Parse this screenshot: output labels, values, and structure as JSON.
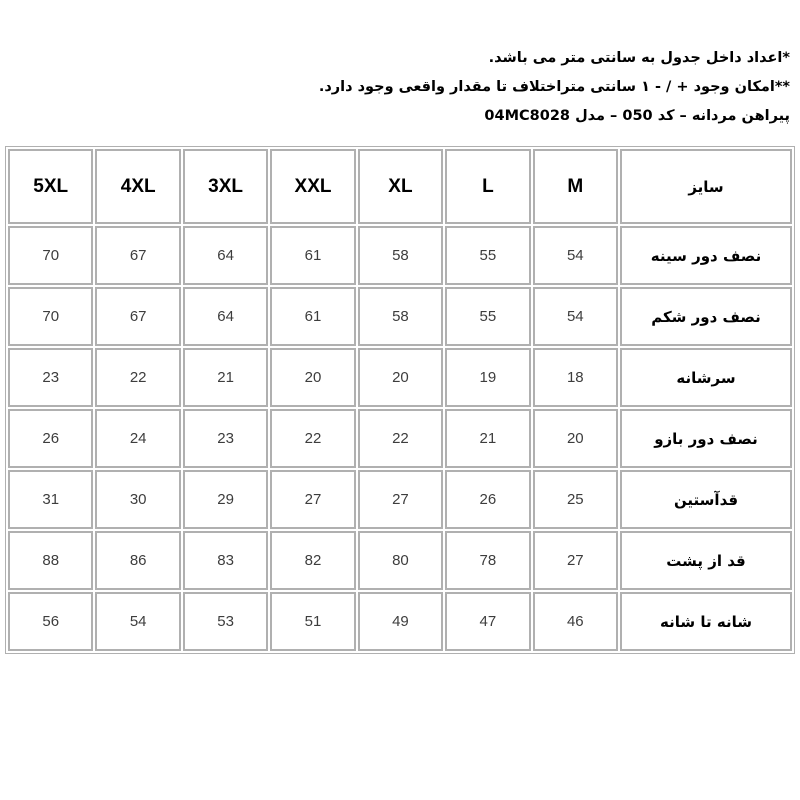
{
  "notes": {
    "units_note": "*اعداد داخل جدول به سانتی متر می باشد.",
    "tolerance_note": "**امکان وجود + / - ۱ سانتی متراختلاف تا مقدار واقعی وجود دارد.",
    "product_title": "پیراهن مردانه – کد 050 – مدل 04MC8028"
  },
  "table": {
    "header": [
      "سایز",
      "M",
      "L",
      "XL",
      "XXL",
      "3XL",
      "4XL",
      "5XL"
    ],
    "rows": [
      {
        "label": "نصف دور سینه",
        "values": [
          "54",
          "55",
          "58",
          "61",
          "64",
          "67",
          "70"
        ]
      },
      {
        "label": "نصف دور شکم",
        "values": [
          "54",
          "55",
          "58",
          "61",
          "64",
          "67",
          "70"
        ]
      },
      {
        "label": "سرشانه",
        "values": [
          "18",
          "19",
          "20",
          "20",
          "21",
          "22",
          "23"
        ]
      },
      {
        "label": "نصف دور بازو",
        "values": [
          "20",
          "21",
          "22",
          "22",
          "23",
          "24",
          "26"
        ]
      },
      {
        "label": "قدآستین",
        "values": [
          "25",
          "26",
          "27",
          "27",
          "29",
          "30",
          "31"
        ]
      },
      {
        "label": "قد از پشت",
        "values": [
          "27",
          "78",
          "80",
          "82",
          "83",
          "86",
          "88"
        ]
      },
      {
        "label": "شانه تا شانه",
        "values": [
          "46",
          "47",
          "49",
          "51",
          "53",
          "54",
          "56"
        ]
      }
    ]
  },
  "colors": {
    "border": "#b0b0b0",
    "heading_text": "#000000",
    "cell_text": "#3d3d3d",
    "background": "#ffffff"
  }
}
